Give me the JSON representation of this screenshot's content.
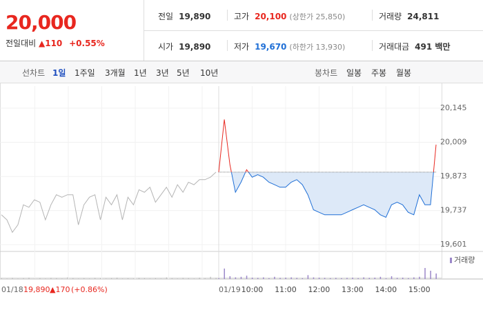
{
  "header": {
    "price": "20,000",
    "change_label": "전일대비",
    "change": "▲110",
    "change_pct": "+0.55%"
  },
  "summary": {
    "rows": [
      [
        {
          "label": "전일",
          "value": "19,890"
        },
        {
          "label": "고가",
          "value": "20,100",
          "note": "(상한가 25,850)"
        },
        {
          "label": "거래량",
          "value": "24,811"
        }
      ],
      [
        {
          "label": "시가",
          "value": "19,890"
        },
        {
          "label": "저가",
          "value": "19,670",
          "note": "(하한가 13,930)"
        },
        {
          "label": "거래대금",
          "value": "491 백만"
        }
      ]
    ]
  },
  "toolbar": {
    "line_label": "선차트",
    "periods": [
      "1일",
      "1주일",
      "3개월",
      "1년",
      "3년",
      "5년",
      "10년"
    ],
    "active": 0,
    "candle_label": "봉차트",
    "candles": [
      "일봉",
      "주봉",
      "월봉"
    ]
  },
  "chart_data": {
    "type": "line",
    "ylim": [
      19574,
      20233
    ],
    "yticks": [
      {
        "value": 19601,
        "label": "19,601"
      },
      {
        "value": 19737,
        "label": "19,737"
      },
      {
        "value": 19873,
        "label": "19,873"
      },
      {
        "value": 20009,
        "label": "20,009"
      },
      {
        "value": 20145,
        "label": "20,145"
      }
    ],
    "reference": 19890,
    "series": [
      {
        "name": "01/18",
        "color": "#b4b4b4",
        "values": [
          19720,
          19700,
          19650,
          19680,
          19760,
          19750,
          19780,
          19770,
          19700,
          19760,
          19800,
          19790,
          19800,
          19800,
          19680,
          19760,
          19790,
          19800,
          19700,
          19790,
          19760,
          19800,
          19700,
          19790,
          19760,
          19820,
          19810,
          19830,
          19770,
          19800,
          19830,
          19790,
          19840,
          19810,
          19850,
          19840,
          19860,
          19860,
          19870,
          19890
        ]
      },
      {
        "name": "01/19",
        "color_up": "#e8271f",
        "color_down": "#1f6fd6",
        "fill": "#dde9f8",
        "values": [
          19890,
          20100,
          19920,
          19810,
          19850,
          19900,
          19870,
          19880,
          19870,
          19850,
          19840,
          19830,
          19830,
          19850,
          19860,
          19840,
          19800,
          19740,
          19730,
          19720,
          19720,
          19720,
          19720,
          19730,
          19740,
          19750,
          19760,
          19750,
          19740,
          19720,
          19710,
          19760,
          19770,
          19760,
          19730,
          19720,
          19800,
          19760,
          19760,
          20000
        ]
      }
    ],
    "prev_day": {
      "price": "19,890",
      "change": "▲170",
      "change_pct": "(+0.86%)"
    },
    "time_labels": [
      "10:00",
      "11:00",
      "12:00",
      "13:00",
      "14:00",
      "15:00"
    ],
    "volume": {
      "name": "거래량",
      "color": "#9b87c9",
      "ylim": [
        0,
        100
      ],
      "values_prev": [
        3,
        2,
        4,
        2,
        3,
        5,
        2,
        3,
        2,
        4,
        3,
        2,
        6,
        3,
        2,
        3,
        2,
        4,
        3,
        2,
        3,
        5,
        2,
        3,
        2,
        4,
        3,
        2,
        3,
        2,
        6,
        3,
        2,
        4,
        3,
        2,
        5,
        3,
        8,
        4
      ],
      "values": [
        3,
        38,
        10,
        6,
        8,
        12,
        5,
        4,
        6,
        3,
        8,
        4,
        5,
        6,
        4,
        3,
        14,
        6,
        5,
        4,
        3,
        4,
        3,
        4,
        5,
        3,
        6,
        4,
        5,
        8,
        3,
        10,
        4,
        5,
        3,
        6,
        8,
        40,
        30,
        20
      ]
    }
  }
}
